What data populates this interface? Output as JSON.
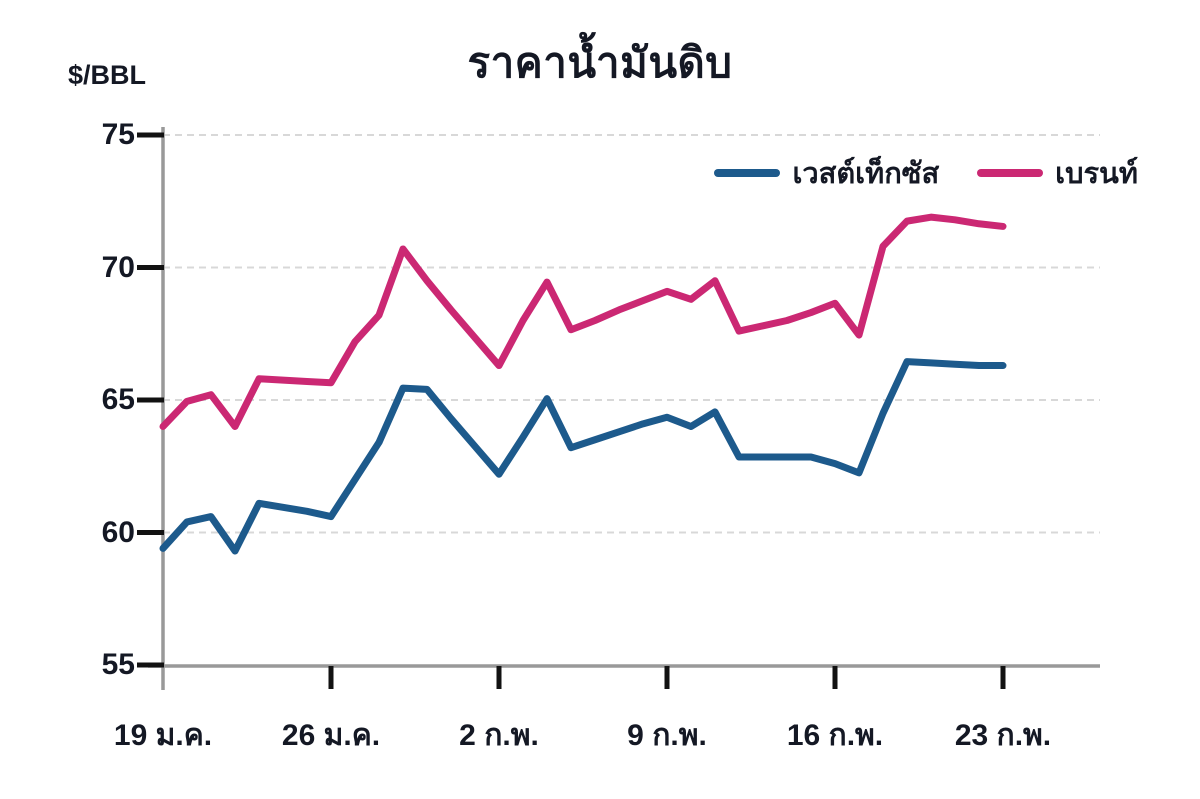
{
  "title": "ราคาน้ำมันดิบ",
  "y_axis_unit": "$/BBL",
  "colors": {
    "west_texas_line": "#1D5A8C",
    "brent_line": "#CB2873",
    "axis": "#999999",
    "gridline": "#d8d8d8",
    "tick": "#121212",
    "text": "#141824",
    "background": "#ffffff"
  },
  "legend": [
    {
      "label": "เวสต์เท็กซัส",
      "color": "#1D5A8C"
    },
    {
      "label": "เบรนท์",
      "color": "#CB2873"
    }
  ],
  "chart_data": {
    "type": "line",
    "title": "ราคาน้ำมันดิบ",
    "xlabel": "",
    "ylabel": "$/BBL",
    "ylim": [
      55,
      75
    ],
    "yticks": [
      55,
      60,
      65,
      70,
      75
    ],
    "grid": "horizontal-dotted",
    "legend_position": "top-right-inside",
    "x_tick_labels": [
      "19 ม.ค.",
      "26 ม.ค.",
      "2 ก.พ.",
      "9 ก.พ.",
      "16 ก.พ.",
      "23 ก.พ."
    ],
    "x_tick_positions": [
      0,
      7,
      14,
      21,
      28,
      35
    ],
    "x": [
      "19 ม.ค.",
      "20 ม.ค.",
      "21 ม.ค.",
      "22 ม.ค.",
      "23 ม.ค.",
      "24 ม.ค.",
      "25 ม.ค.",
      "26 ม.ค.",
      "27 ม.ค.",
      "28 ม.ค.",
      "29 ม.ค.",
      "30 ม.ค.",
      "31 ม.ค.",
      "1 ก.พ.",
      "2 ก.พ.",
      "3 ก.พ.",
      "4 ก.พ.",
      "5 ก.พ.",
      "6 ก.พ.",
      "7 ก.พ.",
      "8 ก.พ.",
      "9 ก.พ.",
      "10 ก.พ.",
      "11 ก.พ.",
      "12 ก.พ.",
      "13 ก.พ.",
      "14 ก.พ.",
      "15 ก.พ.",
      "16 ก.พ.",
      "17 ก.พ.",
      "18 ก.พ.",
      "19 ก.พ.",
      "20 ก.พ.",
      "21 ก.พ.",
      "22 ก.พ.",
      "23 ก.พ."
    ],
    "series": [
      {
        "name": "เวสต์เท็กซัส",
        "color": "#1D5A8C",
        "values": [
          59.4,
          60.4,
          60.6,
          59.3,
          61.1,
          60.95,
          60.8,
          60.6,
          62.0,
          63.4,
          65.45,
          65.4,
          64.3,
          63.25,
          62.2,
          63.6,
          65.05,
          63.2,
          63.5,
          63.8,
          64.1,
          64.35,
          64.0,
          64.55,
          62.85,
          62.85,
          62.85,
          62.85,
          62.6,
          62.25,
          64.5,
          66.45,
          66.4,
          66.35,
          66.3,
          66.3
        ]
      },
      {
        "name": "เบรนท์",
        "color": "#CB2873",
        "values": [
          64.0,
          64.95,
          65.2,
          64.0,
          65.8,
          65.75,
          65.7,
          65.65,
          67.2,
          68.2,
          70.7,
          69.5,
          68.4,
          67.35,
          66.3,
          68.0,
          69.45,
          67.65,
          68.0,
          68.4,
          68.75,
          69.1,
          68.8,
          69.5,
          67.6,
          67.8,
          68.0,
          68.3,
          68.65,
          67.45,
          70.8,
          71.75,
          71.9,
          71.8,
          71.65,
          71.55
        ]
      }
    ]
  }
}
